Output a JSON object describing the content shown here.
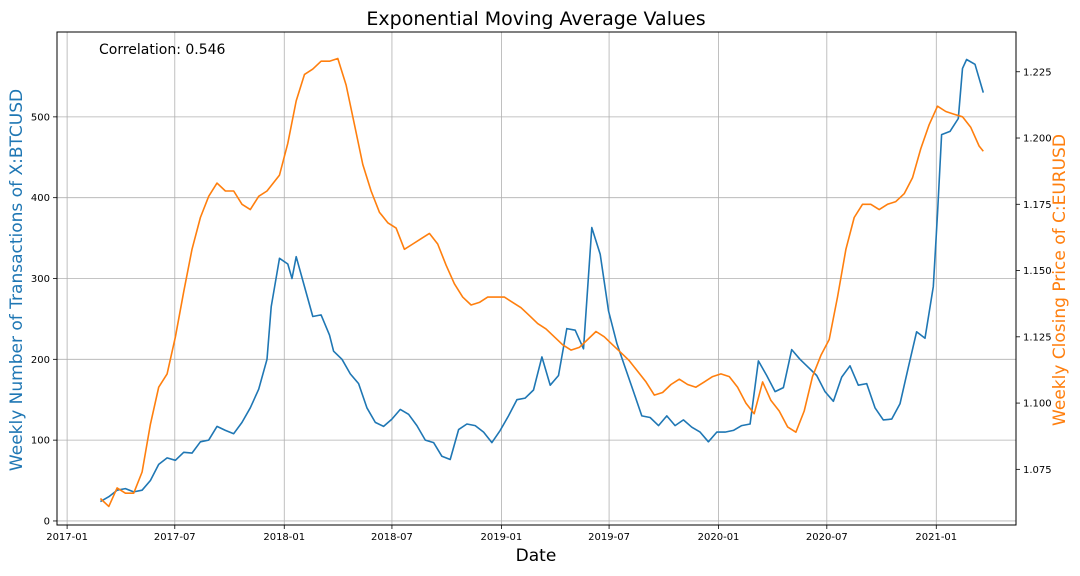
{
  "chart_data": {
    "type": "line",
    "title": "Exponential Moving Average Values",
    "xlabel": "Date",
    "ylabel": "Weekly Number of Transactions of X:BTCUSD",
    "ylabel_right": "Weekly Closing Price of C:EURUSD",
    "annotation": "Correlation: 0.546",
    "x_ticks": [
      "2017-01",
      "2017-07",
      "2018-01",
      "2018-07",
      "2019-01",
      "2019-07",
      "2020-01",
      "2020-07",
      "2021-01"
    ],
    "y_ticks_left": [
      "0",
      "100",
      "200",
      "300",
      "400",
      "500"
    ],
    "y_ticks_right": [
      "1.075",
      "1.100",
      "1.125",
      "1.150",
      "1.175",
      "1.200",
      "1.225"
    ],
    "xlim": [
      "2016-12-15",
      "2021-05-15"
    ],
    "ylim_left": [
      -5,
      605
    ],
    "ylim_right": [
      1.054,
      1.24
    ],
    "grid": true,
    "series": [
      {
        "name": "X:BTCUSD",
        "color": "#1f77b4",
        "axis": "left",
        "points": [
          [
            "2017-02-26",
            24
          ],
          [
            "2017-03-12",
            30
          ],
          [
            "2017-03-26",
            38
          ],
          [
            "2017-04-09",
            40
          ],
          [
            "2017-04-23",
            36
          ],
          [
            "2017-05-07",
            38
          ],
          [
            "2017-05-21",
            50
          ],
          [
            "2017-06-04",
            70
          ],
          [
            "2017-06-18",
            78
          ],
          [
            "2017-07-02",
            75
          ],
          [
            "2017-07-16",
            85
          ],
          [
            "2017-07-30",
            84
          ],
          [
            "2017-08-13",
            98
          ],
          [
            "2017-08-27",
            100
          ],
          [
            "2017-09-10",
            117
          ],
          [
            "2017-09-24",
            112
          ],
          [
            "2017-10-08",
            108
          ],
          [
            "2017-10-22",
            122
          ],
          [
            "2017-11-05",
            140
          ],
          [
            "2017-11-19",
            163
          ],
          [
            "2017-12-03",
            200
          ],
          [
            "2017-12-10",
            265
          ],
          [
            "2017-12-24",
            325
          ],
          [
            "2018-01-07",
            318
          ],
          [
            "2018-01-14",
            300
          ],
          [
            "2018-01-21",
            327
          ],
          [
            "2018-02-04",
            290
          ],
          [
            "2018-02-18",
            253
          ],
          [
            "2018-03-04",
            255
          ],
          [
            "2018-03-18",
            230
          ],
          [
            "2018-03-25",
            210
          ],
          [
            "2018-04-08",
            200
          ],
          [
            "2018-04-22",
            182
          ],
          [
            "2018-05-06",
            170
          ],
          [
            "2018-05-20",
            140
          ],
          [
            "2018-06-03",
            122
          ],
          [
            "2018-06-17",
            117
          ],
          [
            "2018-07-01",
            126
          ],
          [
            "2018-07-15",
            138
          ],
          [
            "2018-07-29",
            132
          ],
          [
            "2018-08-12",
            118
          ],
          [
            "2018-08-26",
            100
          ],
          [
            "2018-09-09",
            97
          ],
          [
            "2018-09-23",
            80
          ],
          [
            "2018-10-07",
            76
          ],
          [
            "2018-10-21",
            113
          ],
          [
            "2018-11-04",
            120
          ],
          [
            "2018-11-18",
            118
          ],
          [
            "2018-12-02",
            110
          ],
          [
            "2018-12-16",
            97
          ],
          [
            "2018-12-30",
            112
          ],
          [
            "2019-01-13",
            130
          ],
          [
            "2019-01-27",
            150
          ],
          [
            "2019-02-10",
            152
          ],
          [
            "2019-02-24",
            162
          ],
          [
            "2019-03-10",
            203
          ],
          [
            "2019-03-24",
            168
          ],
          [
            "2019-04-07",
            180
          ],
          [
            "2019-04-21",
            238
          ],
          [
            "2019-05-05",
            236
          ],
          [
            "2019-05-19",
            213
          ],
          [
            "2019-06-02",
            363
          ],
          [
            "2019-06-16",
            330
          ],
          [
            "2019-06-30",
            260
          ],
          [
            "2019-07-14",
            220
          ],
          [
            "2019-07-28",
            190
          ],
          [
            "2019-08-11",
            160
          ],
          [
            "2019-08-25",
            130
          ],
          [
            "2019-09-08",
            128
          ],
          [
            "2019-09-22",
            118
          ],
          [
            "2019-10-06",
            130
          ],
          [
            "2019-10-20",
            118
          ],
          [
            "2019-11-03",
            125
          ],
          [
            "2019-11-17",
            116
          ],
          [
            "2019-12-01",
            110
          ],
          [
            "2019-12-15",
            98
          ],
          [
            "2019-12-29",
            110
          ],
          [
            "2020-01-12",
            110
          ],
          [
            "2020-01-26",
            112
          ],
          [
            "2020-02-09",
            118
          ],
          [
            "2020-02-23",
            120
          ],
          [
            "2020-03-08",
            198
          ],
          [
            "2020-03-22",
            180
          ],
          [
            "2020-04-05",
            160
          ],
          [
            "2020-04-19",
            165
          ],
          [
            "2020-05-03",
            212
          ],
          [
            "2020-05-17",
            200
          ],
          [
            "2020-05-31",
            190
          ],
          [
            "2020-06-14",
            180
          ],
          [
            "2020-06-28",
            160
          ],
          [
            "2020-07-12",
            148
          ],
          [
            "2020-07-26",
            178
          ],
          [
            "2020-08-09",
            192
          ],
          [
            "2020-08-23",
            168
          ],
          [
            "2020-09-06",
            170
          ],
          [
            "2020-09-20",
            140
          ],
          [
            "2020-10-04",
            125
          ],
          [
            "2020-10-18",
            126
          ],
          [
            "2020-11-01",
            145
          ],
          [
            "2020-11-15",
            190
          ],
          [
            "2020-11-29",
            234
          ],
          [
            "2020-12-13",
            226
          ],
          [
            "2020-12-27",
            290
          ],
          [
            "2021-01-03",
            380
          ],
          [
            "2021-01-10",
            478
          ],
          [
            "2021-01-24",
            482
          ],
          [
            "2021-02-07",
            498
          ],
          [
            "2021-02-14",
            560
          ],
          [
            "2021-02-21",
            571
          ],
          [
            "2021-03-07",
            565
          ],
          [
            "2021-03-21",
            530
          ]
        ]
      },
      {
        "name": "C:EURUSD",
        "color": "#ff7f0e",
        "axis": "right",
        "points": [
          [
            "2017-02-26",
            1.064
          ],
          [
            "2017-03-12",
            1.061
          ],
          [
            "2017-03-26",
            1.068
          ],
          [
            "2017-04-09",
            1.066
          ],
          [
            "2017-04-23",
            1.066
          ],
          [
            "2017-05-07",
            1.074
          ],
          [
            "2017-05-21",
            1.092
          ],
          [
            "2017-06-04",
            1.106
          ],
          [
            "2017-06-18",
            1.111
          ],
          [
            "2017-07-02",
            1.125
          ],
          [
            "2017-07-16",
            1.142
          ],
          [
            "2017-07-30",
            1.158
          ],
          [
            "2017-08-13",
            1.17
          ],
          [
            "2017-08-27",
            1.178
          ],
          [
            "2017-09-10",
            1.183
          ],
          [
            "2017-09-24",
            1.18
          ],
          [
            "2017-10-08",
            1.18
          ],
          [
            "2017-10-22",
            1.175
          ],
          [
            "2017-11-05",
            1.173
          ],
          [
            "2017-11-19",
            1.178
          ],
          [
            "2017-12-03",
            1.18
          ],
          [
            "2017-12-24",
            1.186
          ],
          [
            "2018-01-07",
            1.198
          ],
          [
            "2018-01-21",
            1.214
          ],
          [
            "2018-02-04",
            1.224
          ],
          [
            "2018-02-18",
            1.226
          ],
          [
            "2018-03-04",
            1.229
          ],
          [
            "2018-03-18",
            1.229
          ],
          [
            "2018-04-01",
            1.23
          ],
          [
            "2018-04-15",
            1.22
          ],
          [
            "2018-04-29",
            1.205
          ],
          [
            "2018-05-13",
            1.19
          ],
          [
            "2018-05-27",
            1.18
          ],
          [
            "2018-06-10",
            1.172
          ],
          [
            "2018-06-24",
            1.168
          ],
          [
            "2018-07-08",
            1.166
          ],
          [
            "2018-07-22",
            1.158
          ],
          [
            "2018-08-05",
            1.16
          ],
          [
            "2018-08-19",
            1.162
          ],
          [
            "2018-09-02",
            1.164
          ],
          [
            "2018-09-16",
            1.16
          ],
          [
            "2018-09-30",
            1.152
          ],
          [
            "2018-10-14",
            1.145
          ],
          [
            "2018-10-28",
            1.14
          ],
          [
            "2018-11-11",
            1.137
          ],
          [
            "2018-11-25",
            1.138
          ],
          [
            "2018-12-09",
            1.14
          ],
          [
            "2018-12-23",
            1.14
          ],
          [
            "2019-01-06",
            1.14
          ],
          [
            "2019-01-20",
            1.138
          ],
          [
            "2019-02-03",
            1.136
          ],
          [
            "2019-02-17",
            1.133
          ],
          [
            "2019-03-03",
            1.13
          ],
          [
            "2019-03-17",
            1.128
          ],
          [
            "2019-03-31",
            1.125
          ],
          [
            "2019-04-14",
            1.122
          ],
          [
            "2019-04-28",
            1.12
          ],
          [
            "2019-05-12",
            1.121
          ],
          [
            "2019-05-26",
            1.124
          ],
          [
            "2019-06-09",
            1.127
          ],
          [
            "2019-06-23",
            1.125
          ],
          [
            "2019-07-07",
            1.122
          ],
          [
            "2019-07-21",
            1.119
          ],
          [
            "2019-08-04",
            1.116
          ],
          [
            "2019-08-18",
            1.112
          ],
          [
            "2019-09-01",
            1.108
          ],
          [
            "2019-09-15",
            1.103
          ],
          [
            "2019-09-29",
            1.104
          ],
          [
            "2019-10-13",
            1.107
          ],
          [
            "2019-10-27",
            1.109
          ],
          [
            "2019-11-10",
            1.107
          ],
          [
            "2019-11-24",
            1.106
          ],
          [
            "2019-12-08",
            1.108
          ],
          [
            "2019-12-22",
            1.11
          ],
          [
            "2020-01-05",
            1.111
          ],
          [
            "2020-01-19",
            1.11
          ],
          [
            "2020-02-02",
            1.106
          ],
          [
            "2020-02-16",
            1.1
          ],
          [
            "2020-03-01",
            1.096
          ],
          [
            "2020-03-15",
            1.108
          ],
          [
            "2020-03-29",
            1.101
          ],
          [
            "2020-04-12",
            1.097
          ],
          [
            "2020-04-26",
            1.091
          ],
          [
            "2020-05-10",
            1.089
          ],
          [
            "2020-05-24",
            1.097
          ],
          [
            "2020-06-07",
            1.11
          ],
          [
            "2020-06-21",
            1.118
          ],
          [
            "2020-07-05",
            1.124
          ],
          [
            "2020-07-19",
            1.14
          ],
          [
            "2020-08-02",
            1.158
          ],
          [
            "2020-08-16",
            1.17
          ],
          [
            "2020-08-30",
            1.175
          ],
          [
            "2020-09-13",
            1.175
          ],
          [
            "2020-09-27",
            1.173
          ],
          [
            "2020-10-11",
            1.175
          ],
          [
            "2020-10-25",
            1.176
          ],
          [
            "2020-11-08",
            1.179
          ],
          [
            "2020-11-22",
            1.185
          ],
          [
            "2020-12-06",
            1.196
          ],
          [
            "2020-12-20",
            1.205
          ],
          [
            "2021-01-03",
            1.212
          ],
          [
            "2021-01-17",
            1.21
          ],
          [
            "2021-01-31",
            1.209
          ],
          [
            "2021-02-14",
            1.208
          ],
          [
            "2021-02-28",
            1.204
          ],
          [
            "2021-03-14",
            1.197
          ],
          [
            "2021-03-21",
            1.195
          ]
        ]
      }
    ]
  }
}
